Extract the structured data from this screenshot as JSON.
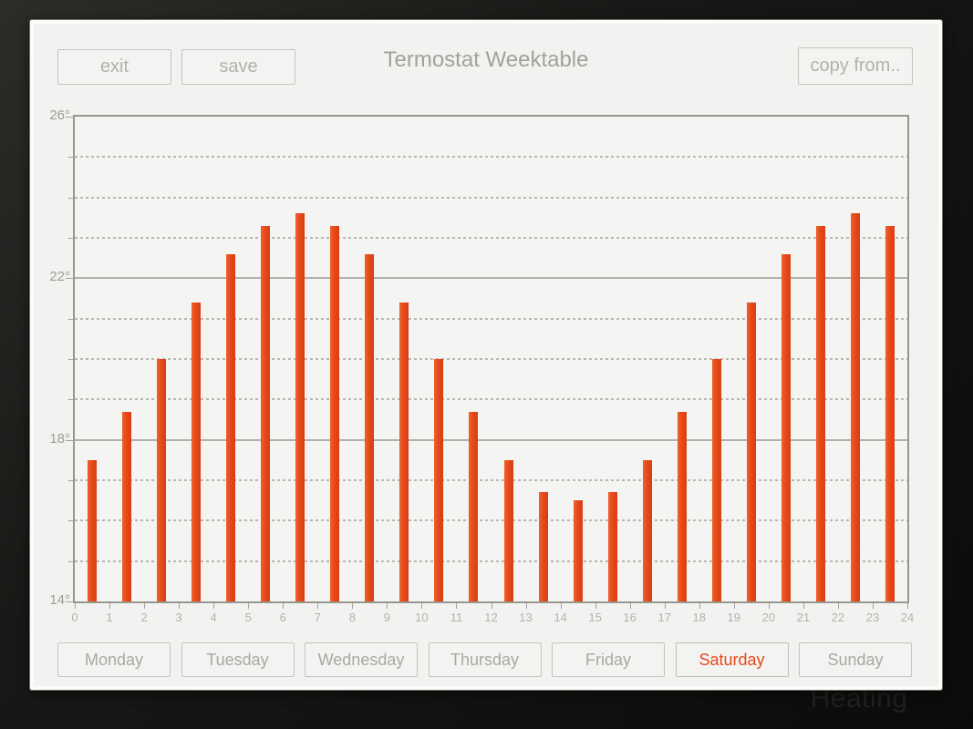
{
  "header": {
    "title": "Termostat Weektable",
    "exit_label": "exit",
    "save_label": "save",
    "copy_from_label": "copy from.."
  },
  "watermark": "Heating",
  "colors": {
    "accent": "#e5491d",
    "bar_light": "#ef6228",
    "bar_dark": "#d93d10",
    "selected_day_text": "#e5491d"
  },
  "days": [
    {
      "label": "Monday",
      "selected": false
    },
    {
      "label": "Tuesday",
      "selected": false
    },
    {
      "label": "Wednesday",
      "selected": false
    },
    {
      "label": "Thursday",
      "selected": false
    },
    {
      "label": "Friday",
      "selected": false
    },
    {
      "label": "Saturday",
      "selected": true
    },
    {
      "label": "Sunday",
      "selected": false
    }
  ],
  "chart_data": {
    "type": "bar",
    "title": "Termostat Weektable",
    "selected_day": "Saturday",
    "xlabel": "",
    "ylabel": "",
    "ylim": [
      14,
      26
    ],
    "grid": true,
    "categories": [
      0,
      1,
      2,
      3,
      4,
      5,
      6,
      7,
      8,
      9,
      10,
      11,
      12,
      13,
      14,
      15,
      16,
      17,
      18,
      19,
      20,
      21,
      22,
      23
    ],
    "values": [
      17.5,
      18.7,
      20.0,
      21.4,
      22.6,
      23.3,
      23.6,
      23.3,
      22.6,
      21.4,
      20.0,
      18.7,
      17.5,
      16.7,
      16.5,
      16.7,
      17.5,
      18.7,
      20.0,
      21.4,
      22.6,
      23.3,
      23.6,
      23.3
    ],
    "y_major_ticks": [
      14,
      18,
      22,
      26
    ],
    "y_major_labels": [
      "14°",
      "18°",
      "22°",
      "26°"
    ],
    "y_minor_ticks": [
      15,
      16,
      17,
      19,
      20,
      21,
      23,
      24,
      25
    ],
    "x_tick_labels": [
      "0",
      "1",
      "2",
      "3",
      "4",
      "5",
      "6",
      "7",
      "8",
      "9",
      "10",
      "11",
      "12",
      "13",
      "14",
      "15",
      "16",
      "17",
      "18",
      "19",
      "20",
      "21",
      "22",
      "23",
      "24"
    ]
  }
}
